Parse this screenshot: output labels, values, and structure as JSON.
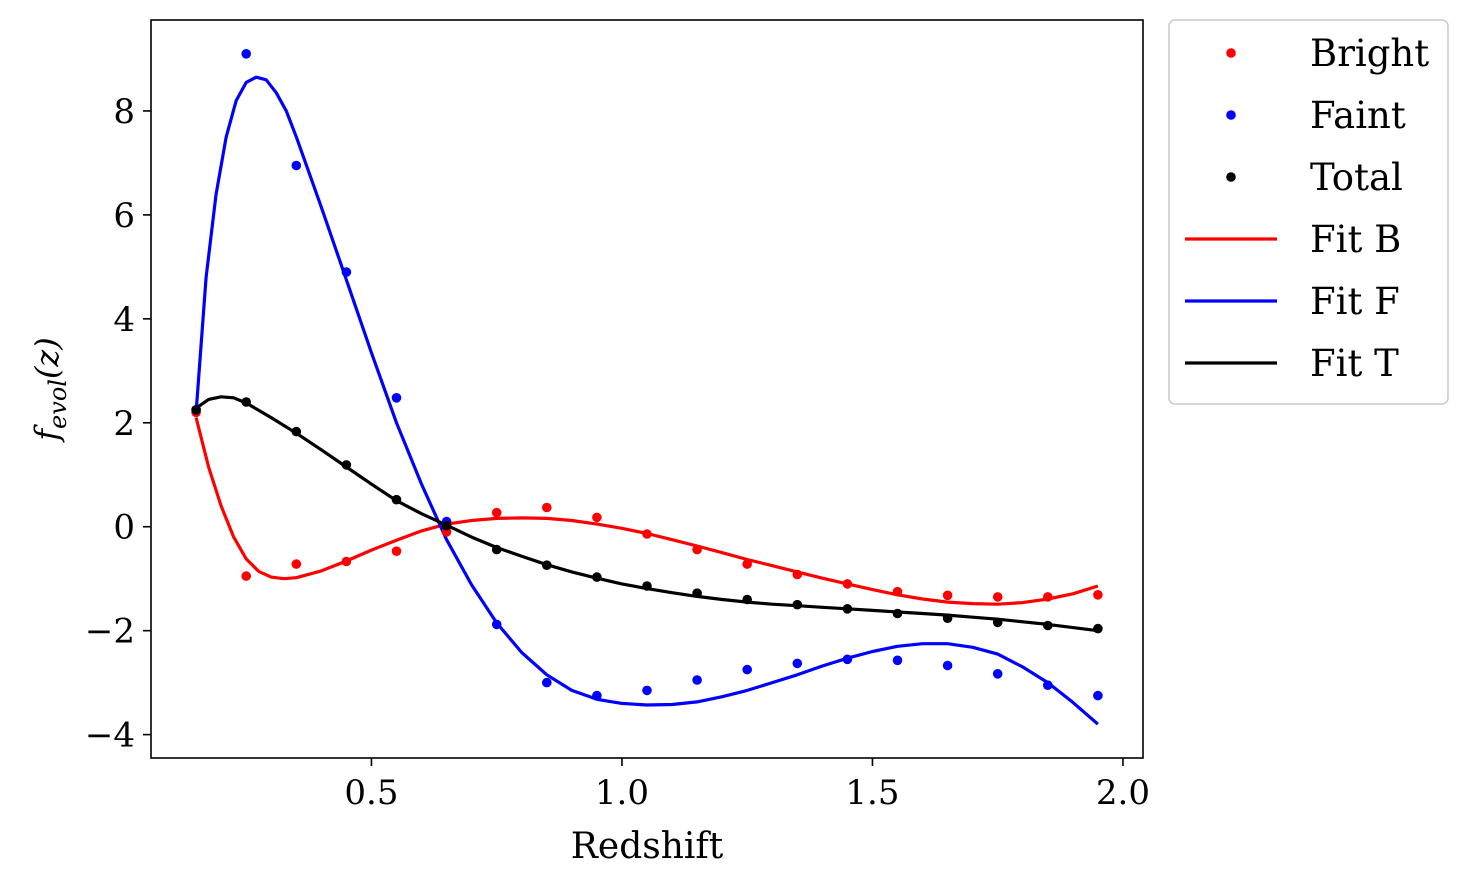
{
  "chart_data": {
    "type": "line",
    "xlabel": "Redshift",
    "ylabel": "f",
    "ylabel_sub": "evol",
    "ylabel_arg": "(z)",
    "xlim": [
      0.06,
      2.04
    ],
    "ylim": [
      -4.45,
      9.75
    ],
    "xticks": [
      0.5,
      1.0,
      1.5,
      2.0
    ],
    "xtick_labels": [
      "0.5",
      "1.0",
      "1.5",
      "2.0"
    ],
    "yticks": [
      -4,
      -2,
      0,
      2,
      4,
      6,
      8
    ],
    "ytick_labels": [
      "−4",
      "−2",
      "0",
      "2",
      "4",
      "6",
      "8"
    ],
    "grid": false,
    "legend_position": "outside upper right",
    "points": [
      {
        "name": "Bright",
        "color": "#ff0000",
        "x": [
          0.15,
          0.25,
          0.35,
          0.45,
          0.55,
          0.65,
          0.75,
          0.85,
          0.95,
          1.05,
          1.15,
          1.25,
          1.35,
          1.45,
          1.55,
          1.65,
          1.75,
          1.85,
          1.95
        ],
        "y": [
          2.2,
          -0.95,
          -0.72,
          -0.67,
          -0.47,
          -0.1,
          0.27,
          0.37,
          0.18,
          -0.14,
          -0.44,
          -0.72,
          -0.92,
          -1.1,
          -1.25,
          -1.32,
          -1.35,
          -1.35,
          -1.31
        ]
      },
      {
        "name": "Faint",
        "color": "#0000ff",
        "x": [
          0.15,
          0.25,
          0.35,
          0.45,
          0.55,
          0.65,
          0.75,
          0.85,
          0.95,
          1.05,
          1.15,
          1.25,
          1.35,
          1.45,
          1.55,
          1.65,
          1.75,
          1.85,
          1.95
        ],
        "y": [
          2.25,
          9.1,
          6.95,
          4.9,
          2.48,
          0.1,
          -1.88,
          -3.0,
          -3.25,
          -3.15,
          -2.95,
          -2.75,
          -2.63,
          -2.55,
          -2.57,
          -2.67,
          -2.83,
          -3.05,
          -3.25
        ]
      },
      {
        "name": "Total",
        "color": "#000000",
        "x": [
          0.15,
          0.25,
          0.35,
          0.45,
          0.55,
          0.65,
          0.75,
          0.85,
          0.95,
          1.05,
          1.15,
          1.25,
          1.35,
          1.45,
          1.55,
          1.65,
          1.75,
          1.85,
          1.95
        ],
        "y": [
          2.25,
          2.4,
          1.83,
          1.19,
          0.52,
          0.02,
          -0.44,
          -0.74,
          -0.97,
          -1.14,
          -1.28,
          -1.4,
          -1.5,
          -1.58,
          -1.67,
          -1.76,
          -1.84,
          -1.9,
          -1.96
        ]
      }
    ],
    "fits": [
      {
        "name": "Fit B",
        "color": "#ff0000",
        "x": [
          0.15,
          0.175,
          0.2,
          0.225,
          0.25,
          0.275,
          0.3,
          0.325,
          0.35,
          0.4,
          0.45,
          0.5,
          0.55,
          0.6,
          0.65,
          0.7,
          0.75,
          0.8,
          0.85,
          0.9,
          0.95,
          1.0,
          1.05,
          1.1,
          1.15,
          1.2,
          1.25,
          1.3,
          1.35,
          1.4,
          1.45,
          1.5,
          1.55,
          1.6,
          1.65,
          1.7,
          1.75,
          1.8,
          1.85,
          1.9,
          1.95
        ],
        "y": [
          2.1,
          1.15,
          0.4,
          -0.2,
          -0.62,
          -0.86,
          -0.97,
          -1.0,
          -0.98,
          -0.85,
          -0.66,
          -0.45,
          -0.26,
          -0.08,
          0.05,
          0.12,
          0.16,
          0.17,
          0.16,
          0.12,
          0.05,
          -0.03,
          -0.13,
          -0.25,
          -0.37,
          -0.5,
          -0.63,
          -0.75,
          -0.87,
          -0.99,
          -1.1,
          -1.21,
          -1.31,
          -1.39,
          -1.45,
          -1.48,
          -1.49,
          -1.46,
          -1.39,
          -1.29,
          -1.14
        ]
      },
      {
        "name": "Fit F",
        "color": "#0000ff",
        "x": [
          0.15,
          0.17,
          0.19,
          0.21,
          0.23,
          0.25,
          0.27,
          0.29,
          0.31,
          0.33,
          0.35,
          0.4,
          0.45,
          0.5,
          0.55,
          0.6,
          0.65,
          0.7,
          0.75,
          0.8,
          0.85,
          0.9,
          0.95,
          1.0,
          1.05,
          1.1,
          1.15,
          1.2,
          1.25,
          1.3,
          1.35,
          1.4,
          1.45,
          1.5,
          1.55,
          1.6,
          1.65,
          1.7,
          1.75,
          1.8,
          1.85,
          1.9,
          1.95
        ],
        "y": [
          2.2,
          4.8,
          6.4,
          7.5,
          8.2,
          8.55,
          8.65,
          8.6,
          8.35,
          8.0,
          7.5,
          6.15,
          4.75,
          3.35,
          2.0,
          0.82,
          -0.25,
          -1.12,
          -1.85,
          -2.42,
          -2.85,
          -3.15,
          -3.32,
          -3.4,
          -3.43,
          -3.42,
          -3.37,
          -3.27,
          -3.15,
          -3.0,
          -2.85,
          -2.68,
          -2.53,
          -2.4,
          -2.3,
          -2.25,
          -2.25,
          -2.32,
          -2.45,
          -2.7,
          -3.0,
          -3.38,
          -3.8
        ]
      },
      {
        "name": "Fit T",
        "color": "#000000",
        "x": [
          0.15,
          0.175,
          0.2,
          0.225,
          0.25,
          0.3,
          0.35,
          0.4,
          0.45,
          0.5,
          0.55,
          0.6,
          0.65,
          0.7,
          0.75,
          0.8,
          0.85,
          0.9,
          0.95,
          1.0,
          1.05,
          1.1,
          1.15,
          1.2,
          1.25,
          1.3,
          1.35,
          1.4,
          1.45,
          1.5,
          1.55,
          1.6,
          1.65,
          1.7,
          1.75,
          1.8,
          1.85,
          1.9,
          1.95
        ],
        "y": [
          2.28,
          2.45,
          2.5,
          2.48,
          2.38,
          2.1,
          1.8,
          1.48,
          1.15,
          0.82,
          0.5,
          0.25,
          0.03,
          -0.2,
          -0.4,
          -0.57,
          -0.73,
          -0.87,
          -0.99,
          -1.1,
          -1.19,
          -1.27,
          -1.34,
          -1.4,
          -1.45,
          -1.49,
          -1.52,
          -1.55,
          -1.58,
          -1.61,
          -1.64,
          -1.67,
          -1.7,
          -1.74,
          -1.78,
          -1.83,
          -1.88,
          -1.94,
          -2.0
        ]
      }
    ],
    "legend": [
      "Bright",
      "Faint",
      "Total",
      "Fit B",
      "Fit F",
      "Fit T"
    ]
  }
}
